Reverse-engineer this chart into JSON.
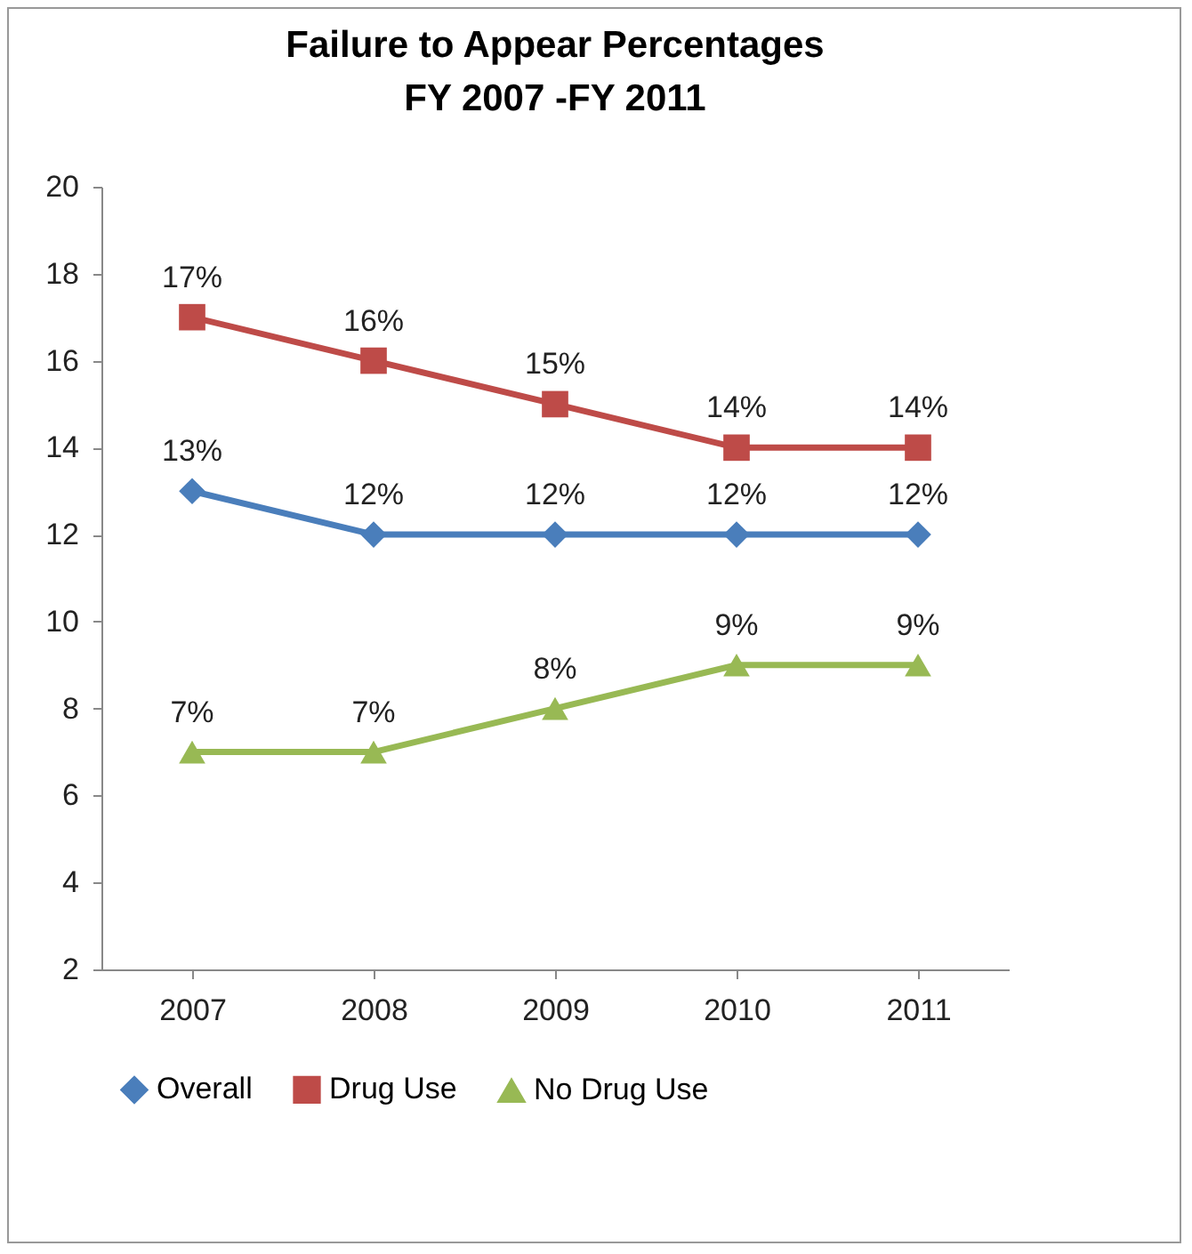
{
  "chart_data": {
    "type": "line",
    "title": "Failure to Appear Percentages\nFY 2007 -FY 2011",
    "categories": [
      "2007",
      "2008",
      "2009",
      "2010",
      "2011"
    ],
    "series": [
      {
        "name": "Overall",
        "color": "#4a7ebb",
        "marker": "diamond",
        "values": [
          13,
          12,
          12,
          12,
          12
        ],
        "value_labels": [
          "13%",
          "12%",
          "12%",
          "12%",
          "12%"
        ]
      },
      {
        "name": "Drug Use",
        "color": "#be4b48",
        "marker": "square",
        "values": [
          17,
          16,
          15,
          14,
          14
        ],
        "value_labels": [
          "17%",
          "16%",
          "15%",
          "14%",
          "14%"
        ]
      },
      {
        "name": "No Drug Use",
        "color": "#98b954",
        "marker": "triangle",
        "values": [
          7,
          7,
          8,
          9,
          9
        ],
        "value_labels": [
          "7%",
          "7%",
          "8%",
          "9%",
          "9%"
        ]
      }
    ],
    "ylim": [
      2,
      20
    ],
    "yticks": [
      2,
      4,
      6,
      8,
      10,
      12,
      14,
      16,
      18,
      20
    ],
    "grid": false,
    "legend": "bottom"
  }
}
